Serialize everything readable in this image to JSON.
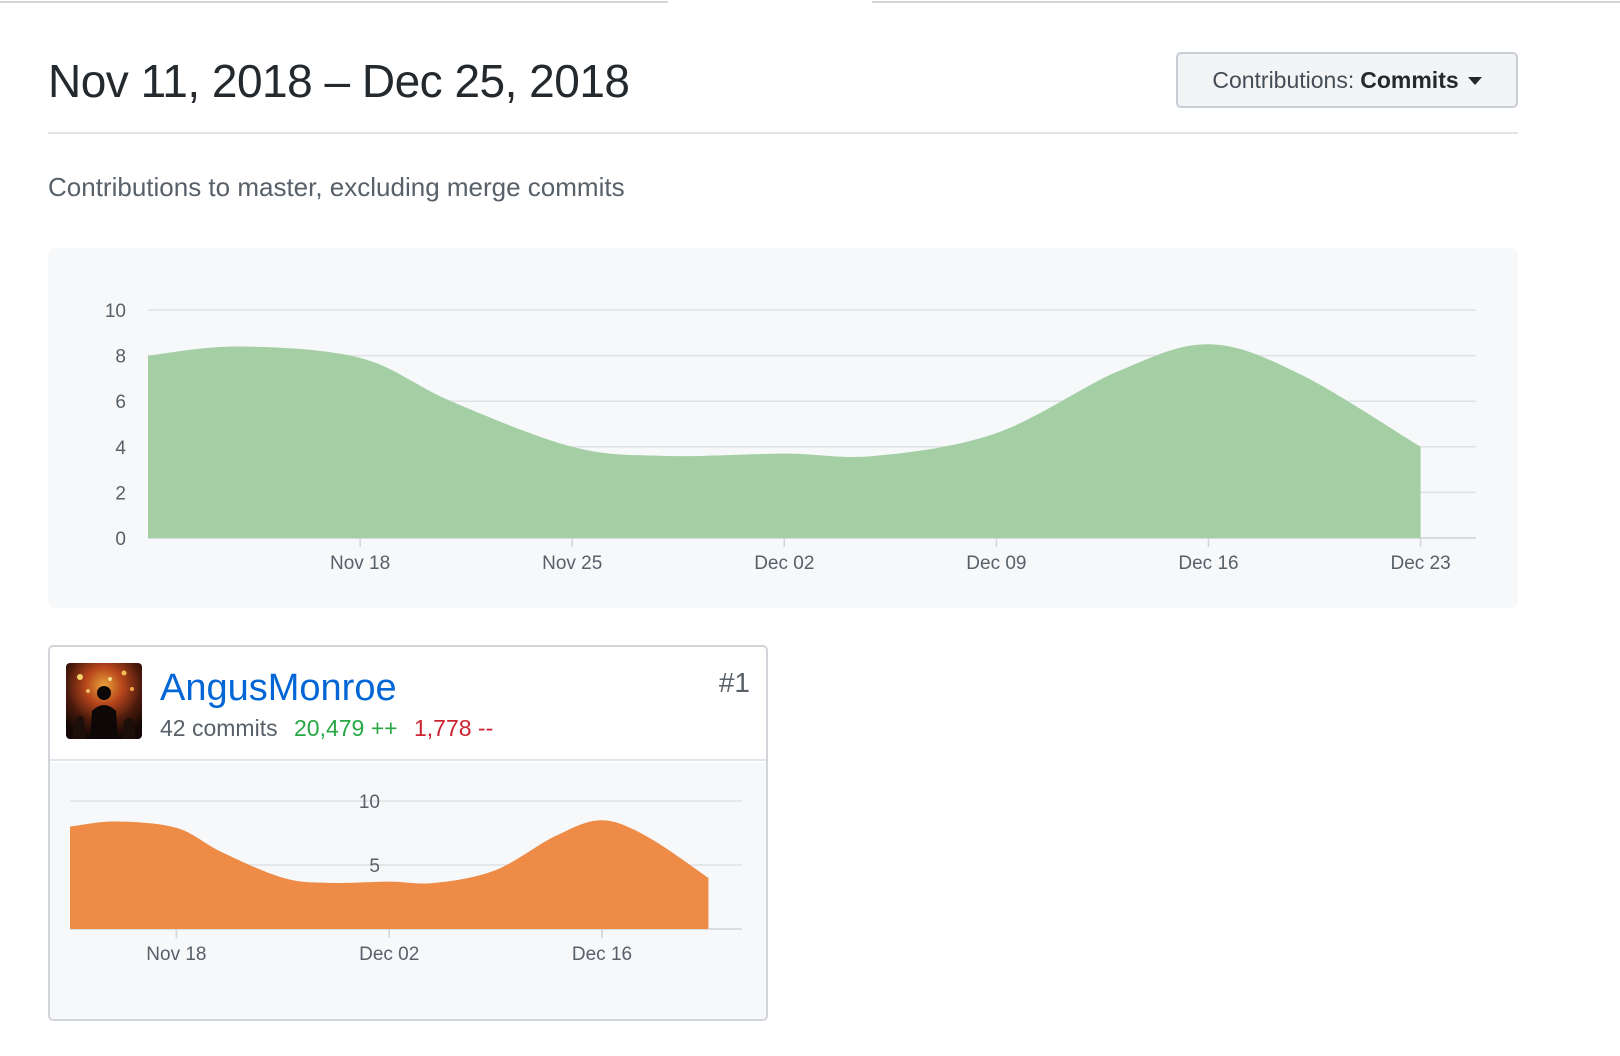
{
  "header": {
    "title": "Nov 11, 2018 – Dec 25, 2018",
    "contributions_label": "Contributions:",
    "contributions_value": "Commits"
  },
  "subtitle": "Contributions to master, excluding merge commits",
  "chart_data": [
    {
      "type": "area",
      "x": [
        "Nov 11",
        "Nov 14",
        "Nov 18",
        "Nov 21",
        "Nov 25",
        "Nov 28",
        "Dec 02",
        "Dec 05",
        "Dec 09",
        "Dec 13",
        "Dec 16",
        "Dec 19",
        "Dec 23"
      ],
      "series": [
        {
          "values": [
            8.0,
            8.4,
            7.9,
            6.0,
            4.0,
            3.6,
            3.7,
            3.6,
            4.6,
            7.3,
            8.5,
            7.2,
            4.0
          ]
        }
      ],
      "ylim": [
        0,
        10
      ],
      "yticks": [
        0,
        2,
        4,
        6,
        8,
        10
      ],
      "xtick_labels": [
        "Nov 18",
        "Nov 25",
        "Dec 02",
        "Dec 09",
        "Dec 16",
        "Dec 23"
      ],
      "grid": true,
      "color": "#a4cfa4"
    },
    {
      "type": "area",
      "x": [
        "Nov 11",
        "Nov 14",
        "Nov 18",
        "Nov 21",
        "Nov 25",
        "Nov 28",
        "Dec 02",
        "Dec 05",
        "Dec 09",
        "Dec 13",
        "Dec 16",
        "Dec 19",
        "Dec 23"
      ],
      "series": [
        {
          "values": [
            8.0,
            8.4,
            7.9,
            6.0,
            4.0,
            3.6,
            3.7,
            3.6,
            4.6,
            7.3,
            8.5,
            7.2,
            4.0
          ]
        }
      ],
      "ylim": [
        0,
        10
      ],
      "yticks": [
        5,
        10
      ],
      "xtick_labels": [
        "Nov 18",
        "Dec 02",
        "Dec 16"
      ],
      "grid": true,
      "color": "#ee8b47"
    }
  ],
  "contributor": {
    "username": "AngusMonroe",
    "rank": "#1",
    "commits": "42 commits",
    "additions": "20,479 ++",
    "deletions": "1,778 --"
  }
}
